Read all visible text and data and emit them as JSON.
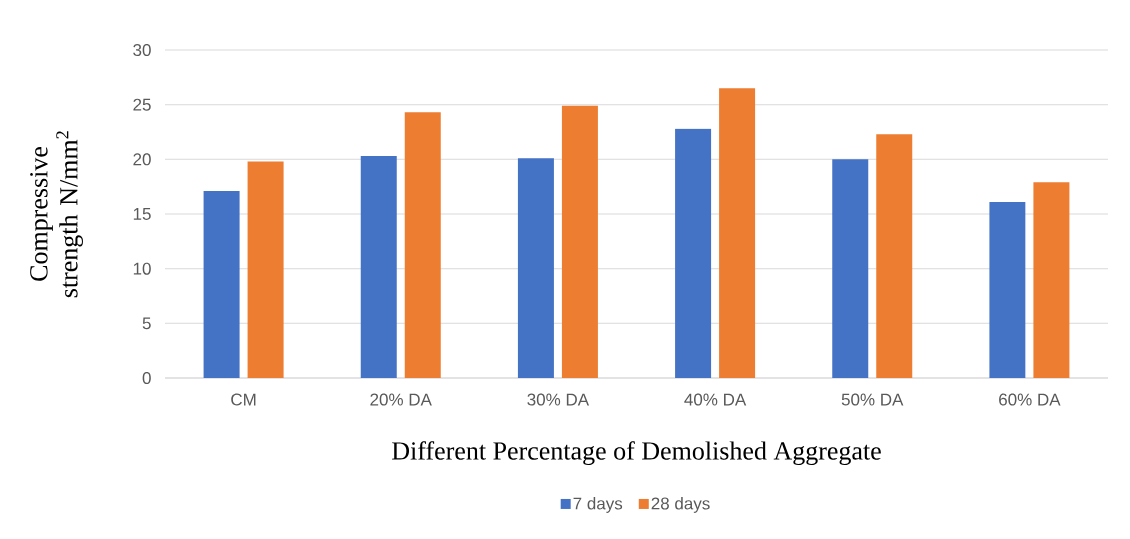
{
  "chart_data": {
    "type": "bar",
    "xlabel": "Different Percentage of Demolished Aggregate",
    "ylabel": "Compressive  strength N/mm$^{2}$",
    "categories": [
      "CM",
      "20% DA",
      "30% DA",
      "40% DA",
      "50% DA",
      "60% DA"
    ],
    "series": [
      {
        "name": "7 days",
        "color": "#4472c4",
        "values": [
          17.1,
          20.3,
          20.1,
          22.8,
          20.0,
          16.1
        ]
      },
      {
        "name": "28 days",
        "color": "#ed7d31",
        "values": [
          19.8,
          24.3,
          24.9,
          26.5,
          22.3,
          17.9
        ]
      }
    ],
    "ylim": [
      0,
      30
    ],
    "yticks": [
      0,
      5,
      10,
      15,
      20,
      25,
      30
    ],
    "grid": "y",
    "legend": "bottom"
  }
}
